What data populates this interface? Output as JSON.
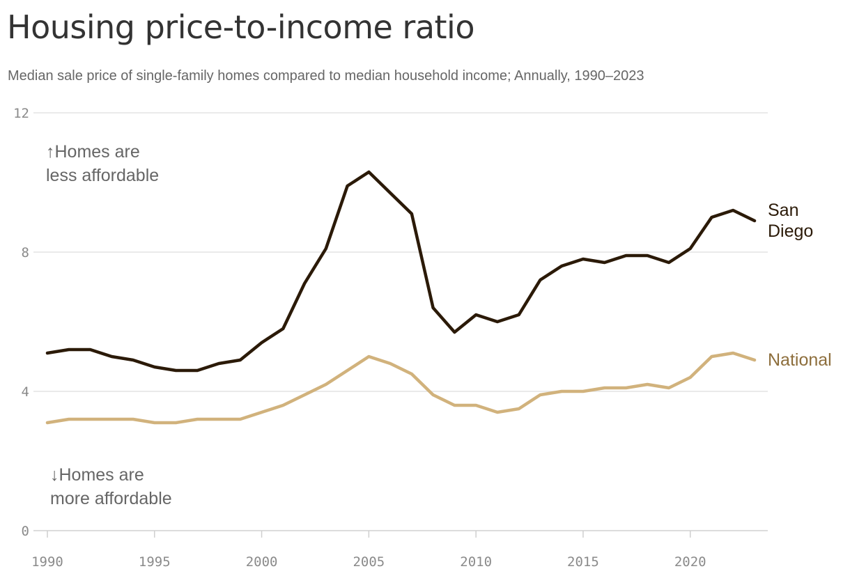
{
  "title": "Housing price-to-income ratio",
  "subtitle": "Median sale price of single-family homes compared to median household income; Annually, 1990–2023",
  "chart_data": {
    "type": "line",
    "title": "Housing price-to-income ratio",
    "subtitle": "Median sale price of single-family homes compared to median household income; Annually, 1990–2023",
    "xlabel": "",
    "ylabel": "",
    "xlim": [
      1990,
      2023
    ],
    "ylim": [
      0,
      12
    ],
    "x_ticks": [
      1990,
      1995,
      2000,
      2005,
      2010,
      2015,
      2020
    ],
    "y_ticks": [
      0,
      4,
      8,
      12
    ],
    "grid": "horizontal",
    "x": [
      1990,
      1991,
      1992,
      1993,
      1994,
      1995,
      1996,
      1997,
      1998,
      1999,
      2000,
      2001,
      2002,
      2003,
      2004,
      2005,
      2006,
      2007,
      2008,
      2009,
      2010,
      2011,
      2012,
      2013,
      2014,
      2015,
      2016,
      2017,
      2018,
      2019,
      2020,
      2021,
      2022,
      2023
    ],
    "series": [
      {
        "name": "San Diego",
        "label_lines": [
          "San",
          "Diego"
        ],
        "color": "#2b1a08",
        "values": [
          5.1,
          5.2,
          5.2,
          5.0,
          4.9,
          4.7,
          4.6,
          4.6,
          4.8,
          4.9,
          5.4,
          5.8,
          7.1,
          8.1,
          9.9,
          10.3,
          9.7,
          9.1,
          6.4,
          5.7,
          6.2,
          6.0,
          6.2,
          7.2,
          7.6,
          7.8,
          7.7,
          7.9,
          7.9,
          7.7,
          8.1,
          9.0,
          9.2,
          8.9
        ]
      },
      {
        "name": "National",
        "label_lines": [
          "National"
        ],
        "color": "#d1b27c",
        "label_color": "#8d6e3c",
        "values": [
          3.1,
          3.2,
          3.2,
          3.2,
          3.2,
          3.1,
          3.1,
          3.2,
          3.2,
          3.2,
          3.4,
          3.6,
          3.9,
          4.2,
          4.6,
          5.0,
          4.8,
          4.5,
          3.9,
          3.6,
          3.6,
          3.4,
          3.5,
          3.9,
          4.0,
          4.0,
          4.1,
          4.1,
          4.2,
          4.1,
          4.4,
          5.0,
          5.1,
          4.9
        ]
      }
    ],
    "annotations": [
      {
        "lines": [
          "↑Homes are",
          "less affordable"
        ]
      },
      {
        "lines": [
          "↓Homes are",
          "more affordable"
        ]
      }
    ]
  }
}
